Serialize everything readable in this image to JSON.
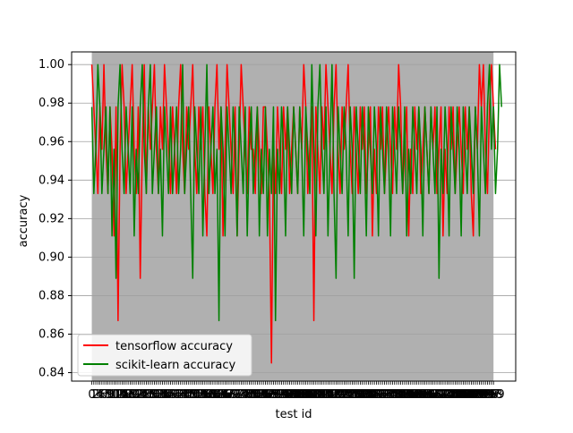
{
  "chart_data": {
    "type": "line",
    "title": "",
    "xlabel": "test id",
    "ylabel": "accuracy",
    "n_tests": 200,
    "xlim": [
      -10,
      210
    ],
    "ylim": [
      0.8356,
      1.0066
    ],
    "yticks": [
      0.84,
      0.86,
      0.88,
      0.9,
      0.92,
      0.94,
      0.96,
      0.98,
      1.0
    ],
    "ytick_labels": [
      "0.84",
      "0.86",
      "0.88",
      "0.90",
      "0.92",
      "0.94",
      "0.96",
      "0.98",
      "1.00"
    ],
    "grid": "y-axis",
    "legend_placement": "lower-left",
    "span_color": "#b0b0b0",
    "series": [
      {
        "name": "tensorflow accuracy",
        "color": "#ff0000",
        "values": [
          1.0,
          0.978,
          0.956,
          0.933,
          0.978,
          0.956,
          1.0,
          0.956,
          0.933,
          0.978,
          0.956,
          0.911,
          0.978,
          0.867,
          0.956,
          1.0,
          0.978,
          0.933,
          0.956,
          0.978,
          1.0,
          0.956,
          0.933,
          0.978,
          0.889,
          0.956,
          1.0,
          0.933,
          0.978,
          0.956,
          0.978,
          1.0,
          0.956,
          0.933,
          0.978,
          0.956,
          1.0,
          0.978,
          0.956,
          0.933,
          0.978,
          0.956,
          0.933,
          0.978,
          1.0,
          0.956,
          0.933,
          0.978,
          0.956,
          0.978,
          1.0,
          0.956,
          0.933,
          0.978,
          0.956,
          0.978,
          0.933,
          0.911,
          0.978,
          0.956,
          0.933,
          0.978,
          1.0,
          0.956,
          0.978,
          0.911,
          0.956,
          1.0,
          0.978,
          0.956,
          0.933,
          0.978,
          0.911,
          0.956,
          1.0,
          0.978,
          0.956,
          0.933,
          0.978,
          0.956,
          0.956,
          0.933,
          0.978,
          0.956,
          0.933,
          0.978,
          0.978,
          0.956,
          0.933,
          0.845,
          0.956,
          0.933,
          0.978,
          0.956,
          0.933,
          0.978,
          0.956,
          0.978,
          0.933,
          0.956,
          0.978,
          0.956,
          0.933,
          0.978,
          0.956,
          1.0,
          0.978,
          0.933,
          0.956,
          0.978,
          0.867,
          0.978,
          0.956,
          0.933,
          0.978,
          0.956,
          1.0,
          0.978,
          0.956,
          0.933,
          0.978,
          1.0,
          0.956,
          0.933,
          0.978,
          0.956,
          0.978,
          1.0,
          0.956,
          0.933,
          0.978,
          0.956,
          0.933,
          0.978,
          0.956,
          0.978,
          0.933,
          0.956,
          0.978,
          0.911,
          0.956,
          0.933,
          0.978,
          0.956,
          0.978,
          0.933,
          0.956,
          0.978,
          0.956,
          0.933,
          0.978,
          0.956,
          1.0,
          0.978,
          0.933,
          0.956,
          0.978,
          0.911,
          0.956,
          0.933,
          0.978,
          0.956,
          0.978,
          0.933,
          0.956,
          0.978,
          0.956,
          0.933,
          0.978,
          0.956,
          0.978,
          0.933,
          0.956,
          0.978,
          0.911,
          0.956,
          0.933,
          0.978,
          0.956,
          0.978,
          0.933,
          0.956,
          0.978,
          0.956,
          0.933,
          0.978,
          0.956,
          0.978,
          0.933,
          0.911,
          0.978,
          0.956,
          1.0,
          0.978,
          1.0,
          0.956,
          0.933,
          0.978,
          1.0,
          0.978,
          0.956
        ]
      },
      {
        "name": "scikit-learn accuracy",
        "color": "#008000",
        "values": [
          0.978,
          0.933,
          0.956,
          1.0,
          0.978,
          0.933,
          0.956,
          0.978,
          0.933,
          0.978,
          0.911,
          0.956,
          0.889,
          0.978,
          1.0,
          0.956,
          0.933,
          0.978,
          0.956,
          0.933,
          0.978,
          0.911,
          0.956,
          0.933,
          0.978,
          1.0,
          0.956,
          0.933,
          0.978,
          1.0,
          0.933,
          0.956,
          0.978,
          0.933,
          0.956,
          0.911,
          0.978,
          0.956,
          0.933,
          0.978,
          0.933,
          0.956,
          0.978,
          0.933,
          0.956,
          1.0,
          0.933,
          0.956,
          0.978,
          0.933,
          0.889,
          0.978,
          0.956,
          0.933,
          0.978,
          0.911,
          0.956,
          1.0,
          0.933,
          0.956,
          0.978,
          0.933,
          0.956,
          0.867,
          0.978,
          0.956,
          0.911,
          0.978,
          0.956,
          0.933,
          0.978,
          0.956,
          0.911,
          0.978,
          0.956,
          0.933,
          0.978,
          0.911,
          0.956,
          0.978,
          0.933,
          0.956,
          0.978,
          0.911,
          0.956,
          0.933,
          0.978,
          0.911,
          0.956,
          0.933,
          0.978,
          0.867,
          0.956,
          0.933,
          0.978,
          0.956,
          0.911,
          0.978,
          0.956,
          0.933,
          0.978,
          0.956,
          0.933,
          0.978,
          0.956,
          0.911,
          0.978,
          0.956,
          0.933,
          1.0,
          0.956,
          0.911,
          0.978,
          1.0,
          0.956,
          0.933,
          0.978,
          0.911,
          0.956,
          1.0,
          0.933,
          0.889,
          0.978,
          0.956,
          0.933,
          0.978,
          0.956,
          0.911,
          0.978,
          0.956,
          0.889,
          0.978,
          0.956,
          0.933,
          0.978,
          0.956,
          0.911,
          0.978,
          0.956,
          0.933,
          0.978,
          0.956,
          0.911,
          0.978,
          0.956,
          0.933,
          0.978,
          0.956,
          0.911,
          0.978,
          0.956,
          0.933,
          0.978,
          0.956,
          0.933,
          0.978,
          0.911,
          0.956,
          0.933,
          0.978,
          0.956,
          0.933,
          0.978,
          0.956,
          0.911,
          0.978,
          0.956,
          0.933,
          0.978,
          0.956,
          0.933,
          0.978,
          0.889,
          0.956,
          0.933,
          0.978,
          0.956,
          0.911,
          0.978,
          0.956,
          0.933,
          0.978,
          0.956,
          0.911,
          0.978,
          0.956,
          0.933,
          0.978,
          0.956,
          0.933,
          0.978,
          0.956,
          0.911,
          0.978,
          0.956,
          0.933,
          0.978,
          1.0,
          0.956,
          0.978,
          0.933,
          0.956,
          1.0,
          0.978
        ]
      }
    ]
  }
}
